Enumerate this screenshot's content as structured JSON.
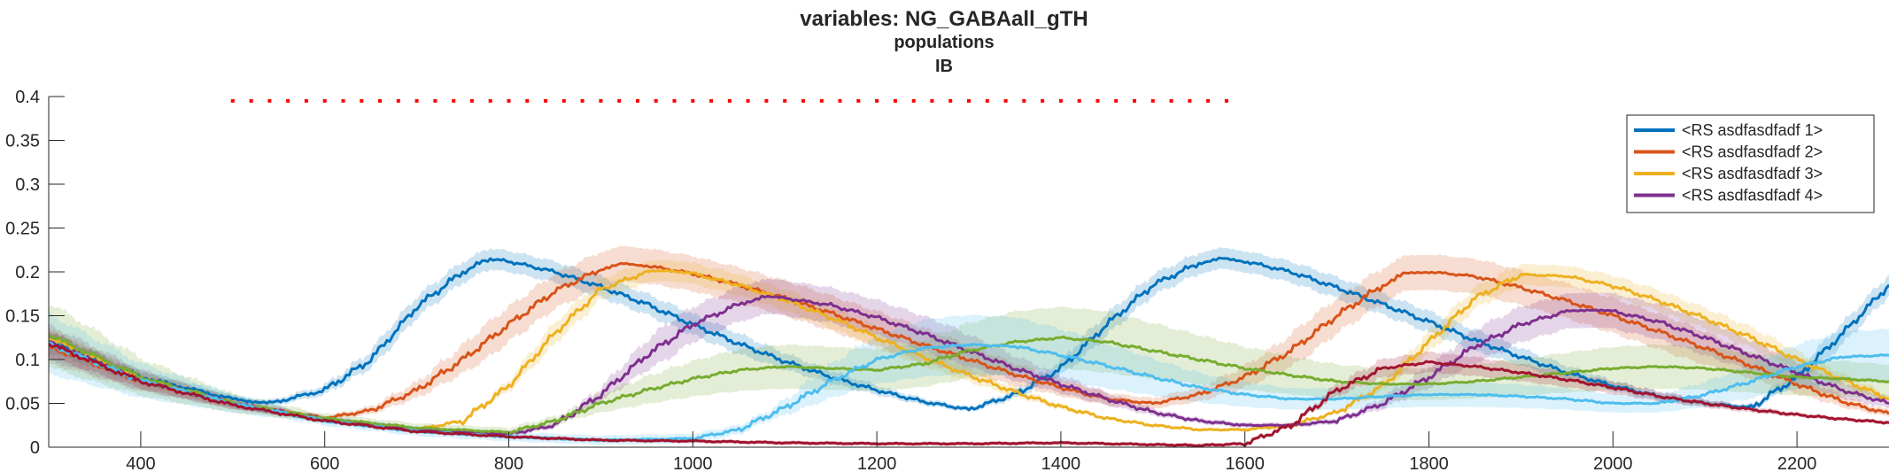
{
  "chart_data": {
    "type": "line",
    "title": "variables: NG_GABAall_gTH",
    "subtitle": "populations",
    "subtitle2": "IB",
    "xlabel": "",
    "ylabel": "",
    "xlim": [
      300,
      2300
    ],
    "ylim": [
      0,
      0.4
    ],
    "x_ticks": [
      400,
      600,
      800,
      1000,
      1200,
      1400,
      1600,
      1800,
      2000,
      2200
    ],
    "y_ticks": [
      0,
      0.05,
      0.1,
      0.15,
      0.2,
      0.25,
      0.3,
      0.35,
      0.4
    ],
    "y_tick_labels": [
      "0",
      "0.05",
      "0.1",
      "0.15",
      "0.2",
      "0.25",
      "0.3",
      "0.35",
      "0.4"
    ],
    "grid": false,
    "legend_position": "top-right",
    "event_markers": {
      "color": "#ff0000",
      "y": 0.395,
      "x_start": 500,
      "x_end": 1580,
      "spacing": 20
    },
    "series": [
      {
        "name": "<RS asdfasdfadf 1>",
        "color": "#0072BD",
        "band": 0.012,
        "x": [
          300,
          400,
          500,
          540,
          600,
          650,
          700,
          750,
          780,
          800,
          850,
          900,
          950,
          1000,
          1050,
          1100,
          1150,
          1200,
          1250,
          1300,
          1350,
          1400,
          1450,
          1500,
          1550,
          1575,
          1600,
          1650,
          1700,
          1750,
          1800,
          1850,
          1900,
          1950,
          2000,
          2050,
          2100,
          2150,
          2200,
          2250,
          2300
        ],
        "y": [
          0.12,
          0.08,
          0.055,
          0.05,
          0.065,
          0.1,
          0.16,
          0.2,
          0.215,
          0.212,
          0.2,
          0.183,
          0.163,
          0.14,
          0.118,
          0.098,
          0.08,
          0.065,
          0.052,
          0.043,
          0.06,
          0.09,
          0.14,
          0.185,
          0.21,
          0.215,
          0.212,
          0.2,
          0.182,
          0.163,
          0.143,
          0.122,
          0.103,
          0.085,
          0.07,
          0.058,
          0.05,
          0.045,
          0.08,
          0.13,
          0.185
        ]
      },
      {
        "name": "<RS asdfasdfadf 2>",
        "color": "#D95319",
        "band": 0.02,
        "x": [
          300,
          400,
          500,
          600,
          650,
          700,
          750,
          800,
          850,
          900,
          925,
          950,
          1000,
          1050,
          1100,
          1150,
          1200,
          1250,
          1300,
          1350,
          1400,
          1450,
          1500,
          1550,
          1600,
          1650,
          1700,
          1750,
          1775,
          1800,
          1850,
          1900,
          1950,
          2000,
          2050,
          2100,
          2150,
          2200,
          2250,
          2300
        ],
        "y": [
          0.115,
          0.075,
          0.05,
          0.033,
          0.042,
          0.065,
          0.1,
          0.14,
          0.178,
          0.203,
          0.209,
          0.207,
          0.198,
          0.185,
          0.17,
          0.153,
          0.135,
          0.117,
          0.1,
          0.083,
          0.068,
          0.055,
          0.05,
          0.06,
          0.08,
          0.11,
          0.15,
          0.185,
          0.198,
          0.2,
          0.195,
          0.182,
          0.167,
          0.15,
          0.132,
          0.113,
          0.093,
          0.072,
          0.052,
          0.038
        ]
      },
      {
        "name": "<RS asdfasdfadf 3>",
        "color": "#EDB120",
        "band": 0.012,
        "x": [
          300,
          400,
          500,
          600,
          700,
          750,
          800,
          850,
          900,
          950,
          975,
          1000,
          1050,
          1100,
          1150,
          1200,
          1250,
          1300,
          1350,
          1400,
          1450,
          1500,
          1550,
          1600,
          1650,
          1700,
          1750,
          1800,
          1850,
          1900,
          1950,
          2000,
          2050,
          2100,
          2150,
          2200,
          2250,
          2300
        ],
        "y": [
          0.125,
          0.078,
          0.05,
          0.032,
          0.02,
          0.03,
          0.07,
          0.13,
          0.18,
          0.2,
          0.202,
          0.198,
          0.185,
          0.168,
          0.148,
          0.125,
          0.103,
          0.082,
          0.063,
          0.046,
          0.033,
          0.025,
          0.02,
          0.02,
          0.025,
          0.04,
          0.07,
          0.12,
          0.17,
          0.197,
          0.195,
          0.184,
          0.167,
          0.147,
          0.125,
          0.1,
          0.077,
          0.055
        ]
      },
      {
        "name": "<RS asdfasdfadf 4>",
        "color": "#7E2F8E",
        "band": 0.02,
        "x": [
          300,
          400,
          500,
          600,
          700,
          800,
          850,
          900,
          950,
          1000,
          1050,
          1075,
          1100,
          1150,
          1200,
          1250,
          1300,
          1350,
          1400,
          1450,
          1500,
          1550,
          1600,
          1650,
          1700,
          1750,
          1800,
          1850,
          1900,
          1950,
          1975,
          2000,
          2050,
          2100,
          2150,
          2200,
          2250,
          2300
        ],
        "y": [
          0.12,
          0.077,
          0.05,
          0.032,
          0.02,
          0.015,
          0.025,
          0.06,
          0.105,
          0.14,
          0.163,
          0.172,
          0.17,
          0.162,
          0.148,
          0.13,
          0.11,
          0.09,
          0.072,
          0.055,
          0.04,
          0.03,
          0.025,
          0.025,
          0.03,
          0.05,
          0.08,
          0.115,
          0.14,
          0.155,
          0.157,
          0.155,
          0.143,
          0.125,
          0.105,
          0.085,
          0.065,
          0.05
        ]
      },
      {
        "name": "",
        "color": "#77AC30",
        "band": 0.035,
        "x": [
          300,
          400,
          500,
          600,
          700,
          800,
          850,
          900,
          950,
          1000,
          1050,
          1100,
          1150,
          1200,
          1250,
          1300,
          1350,
          1400,
          1450,
          1500,
          1550,
          1600,
          1650,
          1700,
          1750,
          1800,
          1850,
          1900,
          1950,
          2000,
          2050,
          2100,
          2150,
          2200,
          2250,
          2300
        ],
        "y": [
          0.128,
          0.08,
          0.05,
          0.033,
          0.022,
          0.017,
          0.03,
          0.05,
          0.065,
          0.078,
          0.088,
          0.092,
          0.09,
          0.088,
          0.095,
          0.11,
          0.12,
          0.125,
          0.12,
          0.11,
          0.1,
          0.09,
          0.082,
          0.075,
          0.072,
          0.072,
          0.075,
          0.08,
          0.085,
          0.09,
          0.092,
          0.09,
          0.085,
          0.08,
          0.078,
          0.075
        ]
      },
      {
        "name": "",
        "color": "#4DBEEE",
        "band": 0.035,
        "x": [
          300,
          400,
          500,
          600,
          700,
          800,
          900,
          1000,
          1050,
          1100,
          1150,
          1200,
          1250,
          1300,
          1350,
          1400,
          1450,
          1500,
          1550,
          1600,
          1650,
          1700,
          1750,
          1800,
          1850,
          1900,
          1950,
          2000,
          2050,
          2100,
          2150,
          2200,
          2250,
          2300
        ],
        "y": [
          0.118,
          0.076,
          0.05,
          0.03,
          0.018,
          0.012,
          0.008,
          0.01,
          0.02,
          0.045,
          0.075,
          0.1,
          0.113,
          0.117,
          0.115,
          0.105,
          0.093,
          0.08,
          0.068,
          0.06,
          0.055,
          0.055,
          0.058,
          0.06,
          0.06,
          0.058,
          0.055,
          0.05,
          0.05,
          0.06,
          0.075,
          0.092,
          0.103,
          0.105
        ]
      },
      {
        "name": "",
        "color": "#A2142F",
        "band": 0.015,
        "x": [
          300,
          400,
          500,
          600,
          700,
          800,
          900,
          1000,
          1100,
          1200,
          1300,
          1400,
          1500,
          1550,
          1600,
          1650,
          1700,
          1750,
          1800,
          1850,
          1900,
          1950,
          2000,
          2050,
          2100,
          2150,
          2200,
          2250,
          2300
        ],
        "y": [
          0.118,
          0.075,
          0.048,
          0.03,
          0.018,
          0.012,
          0.008,
          0.007,
          0.005,
          0.004,
          0.004,
          0.005,
          0.003,
          0.002,
          0.004,
          0.025,
          0.065,
          0.09,
          0.097,
          0.092,
          0.085,
          0.077,
          0.068,
          0.058,
          0.05,
          0.043,
          0.037,
          0.032,
          0.028
        ]
      }
    ]
  }
}
